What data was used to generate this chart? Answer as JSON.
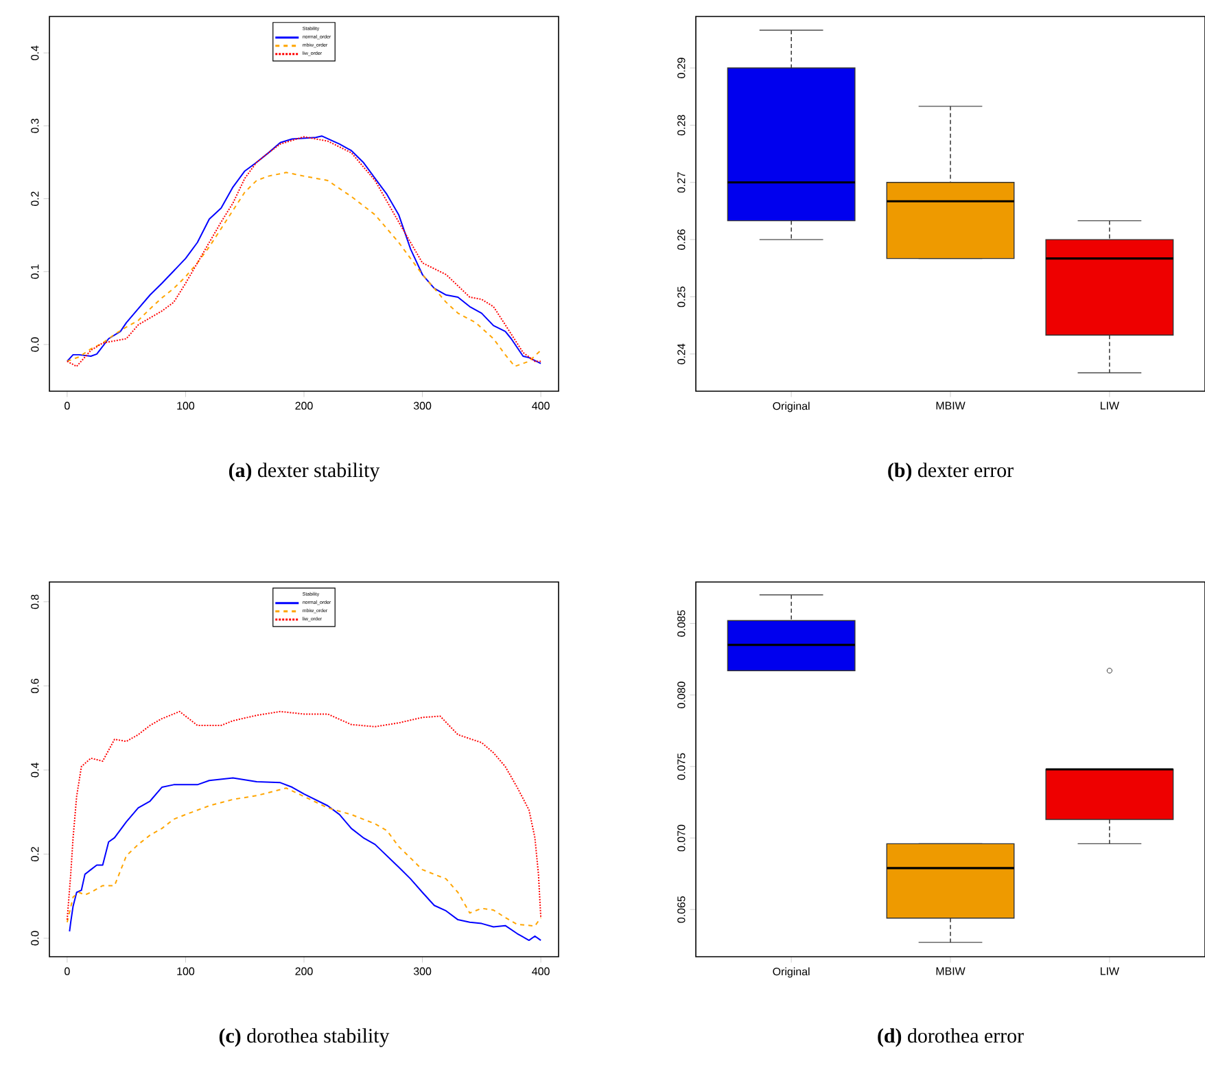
{
  "chart_data": [
    {
      "type": "line",
      "title": "**(a)** dexter stability",
      "legend_title": "Stability",
      "legend": "top",
      "marker": "none",
      "xlim": [
        -15,
        415
      ],
      "ylim": [
        -0.064,
        0.45
      ],
      "xticks": [
        0,
        100,
        200,
        300,
        400
      ],
      "yticks": [
        {
          "value": 0,
          "label": "0.0"
        },
        {
          "value": 0.1,
          "label": "0.1"
        },
        {
          "value": 0.2,
          "label": "0.2"
        },
        {
          "value": 0.3,
          "label": "0.3"
        },
        {
          "value": 0.4,
          "label": "0.4"
        }
      ],
      "series": [
        {
          "name": "normal_order",
          "color": "#0000ff",
          "line_style": "solid",
          "x": [
            0,
            5,
            10,
            20,
            25,
            35,
            45,
            50,
            60,
            70,
            80,
            90,
            100,
            110,
            120,
            130,
            140,
            150,
            160,
            170,
            180,
            190,
            200,
            210,
            215,
            230,
            240,
            250,
            260,
            270,
            280,
            290,
            300,
            310,
            320,
            330,
            340,
            350,
            360,
            370,
            375,
            385,
            390,
            400
          ],
          "values": [
            -0.023,
            -0.014,
            -0.014,
            -0.016,
            -0.013,
            0.008,
            0.018,
            0.03,
            0.049,
            0.068,
            0.084,
            0.101,
            0.118,
            0.14,
            0.172,
            0.187,
            0.216,
            0.238,
            0.25,
            0.263,
            0.277,
            0.282,
            0.283,
            0.284,
            0.286,
            0.275,
            0.266,
            0.25,
            0.228,
            0.206,
            0.178,
            0.131,
            0.096,
            0.077,
            0.068,
            0.065,
            0.052,
            0.043,
            0.026,
            0.018,
            0.008,
            -0.016,
            -0.018,
            -0.026
          ]
        },
        {
          "name": "mbiw_order",
          "color": "#ffa500",
          "line_style": "dashed",
          "x": [
            0,
            10,
            20,
            30,
            40,
            50,
            60,
            70,
            80,
            90,
            100,
            110,
            120,
            130,
            140,
            150,
            160,
            170,
            185,
            200,
            220,
            240,
            260,
            280,
            300,
            320,
            330,
            345,
            360,
            370,
            378,
            390,
            400
          ],
          "values": [
            -0.023,
            -0.017,
            -0.006,
            0.002,
            0.014,
            0.024,
            0.033,
            0.049,
            0.064,
            0.077,
            0.093,
            0.112,
            0.134,
            0.159,
            0.184,
            0.209,
            0.225,
            0.231,
            0.236,
            0.231,
            0.225,
            0.203,
            0.178,
            0.14,
            0.096,
            0.058,
            0.043,
            0.03,
            0.008,
            -0.014,
            -0.03,
            -0.023,
            -0.008
          ]
        },
        {
          "name": "liw_order",
          "color": "#ff0000",
          "line_style": "dotted",
          "x": [
            0,
            8,
            20,
            30,
            50,
            60,
            80,
            90,
            100,
            110,
            120,
            130,
            140,
            150,
            160,
            170,
            180,
            200,
            220,
            240,
            260,
            280,
            290,
            300,
            320,
            340,
            350,
            360,
            370,
            385,
            395,
            400
          ],
          "values": [
            -0.023,
            -0.03,
            -0.008,
            0.002,
            0.008,
            0.027,
            0.046,
            0.058,
            0.084,
            0.112,
            0.14,
            0.168,
            0.194,
            0.228,
            0.25,
            0.263,
            0.275,
            0.285,
            0.279,
            0.263,
            0.225,
            0.168,
            0.14,
            0.112,
            0.096,
            0.065,
            0.062,
            0.052,
            0.027,
            -0.011,
            -0.023,
            -0.023
          ]
        }
      ]
    },
    {
      "type": "box",
      "title": "**(b)** dexter error",
      "categories": [
        "Original",
        "MBIW",
        "LIW"
      ],
      "colors": [
        "#0000ee",
        "#ee9a00",
        "#ee0000"
      ],
      "ylim": [
        0.2335,
        0.299
      ],
      "yticks": [
        0.24,
        0.25,
        0.26,
        0.27,
        0.28,
        0.29
      ],
      "boxes": [
        {
          "low": 0.26,
          "q1": 0.2633,
          "median": 0.27,
          "q3": 0.29,
          "high": 0.2966
        },
        {
          "low": 0.2567,
          "q1": 0.2567,
          "median": 0.2667,
          "q3": 0.27,
          "high": 0.2833
        },
        {
          "low": 0.2367,
          "q1": 0.2433,
          "median": 0.2567,
          "q3": 0.26,
          "high": 0.2633
        }
      ]
    },
    {
      "type": "line",
      "title": "**(c)** dorothea stability",
      "legend_title": "Stability",
      "legend": "top",
      "marker": "none",
      "xlim": [
        -15,
        415
      ],
      "ylim": [
        -0.044,
        0.847
      ],
      "xticks": [
        0,
        100,
        200,
        300,
        400
      ],
      "yticks": [
        {
          "value": 0,
          "label": "0.0"
        },
        {
          "value": 0.2,
          "label": "0.2"
        },
        {
          "value": 0.4,
          "label": "0.4"
        },
        {
          "value": 0.6,
          "label": "0.6"
        },
        {
          "value": 0.8,
          "label": "0.8"
        }
      ],
      "series": [
        {
          "name": "normal_order",
          "color": "#0000ff",
          "line_style": "solid",
          "x": [
            2,
            3,
            5,
            8,
            12,
            15,
            20,
            25,
            30,
            35,
            40,
            50,
            60,
            70,
            80,
            90,
            110,
            120,
            140,
            160,
            180,
            190,
            200,
            220,
            230,
            240,
            250,
            260,
            270,
            280,
            290,
            300,
            310,
            320,
            330,
            340,
            350,
            360,
            370,
            380,
            390,
            395,
            400
          ],
          "values": [
            0.016,
            0.038,
            0.076,
            0.109,
            0.114,
            0.152,
            0.163,
            0.174,
            0.174,
            0.229,
            0.239,
            0.277,
            0.31,
            0.326,
            0.359,
            0.365,
            0.365,
            0.375,
            0.381,
            0.372,
            0.37,
            0.359,
            0.343,
            0.315,
            0.294,
            0.261,
            0.239,
            0.223,
            0.196,
            0.169,
            0.141,
            0.109,
            0.078,
            0.065,
            0.044,
            0.038,
            0.035,
            0.027,
            0.03,
            0.011,
            -0.005,
            0.005,
            -0.005
          ]
        },
        {
          "name": "mbiw_order",
          "color": "#ffa500",
          "line_style": "dashed",
          "x": [
            0,
            5,
            10,
            15,
            20,
            30,
            40,
            50,
            60,
            70,
            80,
            90,
            100,
            120,
            140,
            160,
            185,
            200,
            220,
            240,
            260,
            270,
            280,
            300,
            320,
            330,
            340,
            350,
            360,
            370,
            380,
            395,
            400
          ],
          "values": [
            0.038,
            0.098,
            0.109,
            0.103,
            0.109,
            0.125,
            0.125,
            0.196,
            0.223,
            0.245,
            0.261,
            0.283,
            0.294,
            0.315,
            0.33,
            0.339,
            0.357,
            0.337,
            0.31,
            0.294,
            0.272,
            0.256,
            0.218,
            0.163,
            0.141,
            0.109,
            0.06,
            0.071,
            0.067,
            0.049,
            0.033,
            0.029,
            0.049
          ]
        },
        {
          "name": "liw_order",
          "color": "#ff0000",
          "line_style": "dotted",
          "x": [
            0,
            3,
            5,
            8,
            12,
            20,
            30,
            40,
            50,
            60,
            70,
            80,
            95,
            110,
            130,
            140,
            160,
            180,
            200,
            220,
            240,
            260,
            280,
            300,
            315,
            330,
            350,
            360,
            370,
            380,
            390,
            395,
            398,
            400
          ],
          "values": [
            0.044,
            0.152,
            0.239,
            0.337,
            0.408,
            0.428,
            0.421,
            0.473,
            0.468,
            0.484,
            0.506,
            0.522,
            0.539,
            0.506,
            0.506,
            0.517,
            0.53,
            0.539,
            0.533,
            0.533,
            0.508,
            0.503,
            0.512,
            0.525,
            0.528,
            0.484,
            0.465,
            0.441,
            0.408,
            0.359,
            0.305,
            0.239,
            0.152,
            0.049
          ]
        }
      ]
    },
    {
      "type": "box",
      "title": "**(d)** dorothea error",
      "categories": [
        "Original",
        "MBIW",
        "LIW"
      ],
      "colors": [
        "#0000ee",
        "#ee9a00",
        "#ee0000"
      ],
      "ylim": [
        0.0617,
        0.0879
      ],
      "yticks": [
        {
          "value": 0.065,
          "label": "0.065"
        },
        {
          "value": 0.07,
          "label": "0.070"
        },
        {
          "value": 0.075,
          "label": "0.075"
        },
        {
          "value": 0.08,
          "label": "0.080"
        },
        {
          "value": 0.085,
          "label": "0.085"
        }
      ],
      "boxes": [
        {
          "low": 0.0817,
          "q1": 0.0817,
          "median": 0.0835,
          "q3": 0.0852,
          "high": 0.087
        },
        {
          "low": 0.0627,
          "q1": 0.0644,
          "median": 0.0679,
          "q3": 0.0696,
          "high": 0.0696
        },
        {
          "low": 0.0696,
          "q1": 0.0713,
          "median": 0.0748,
          "q3": 0.0748,
          "high": 0.0748,
          "outliers": [
            0.0817
          ]
        }
      ]
    }
  ]
}
